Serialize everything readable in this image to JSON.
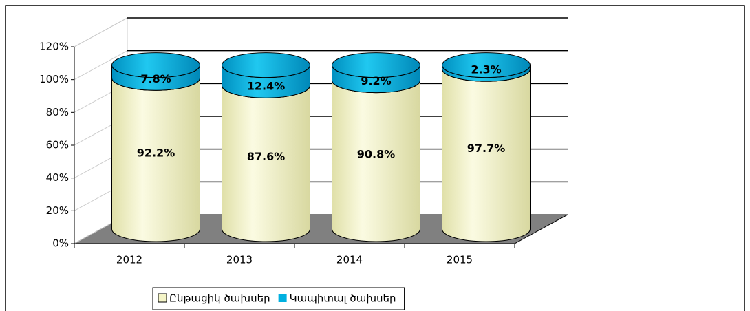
{
  "chart_data": {
    "type": "bar",
    "stacked": true,
    "categories": [
      "2012",
      "2013",
      "2014",
      "2015"
    ],
    "series": [
      {
        "name": "Ընթացիկ ծախսեր",
        "color": "#f5f5c8",
        "values": [
          92.2,
          87.6,
          90.8,
          97.7
        ],
        "value_labels": [
          "92.2%",
          "87.6%",
          "90.8%",
          "97.7%"
        ]
      },
      {
        "name": "Կապիտալ ծախսեր",
        "color": "#00b0e0",
        "values": [
          7.8,
          12.4,
          9.2,
          2.3
        ],
        "value_labels": [
          "7.8%",
          "12.4%",
          "9.2%",
          "2.3%"
        ]
      }
    ],
    "ylim": [
      0,
      120
    ],
    "yticks": [
      {
        "value": 0,
        "label": "0%"
      },
      {
        "value": 20,
        "label": "20%"
      },
      {
        "value": 40,
        "label": "40%"
      },
      {
        "value": 60,
        "label": "60%"
      },
      {
        "value": 80,
        "label": "80%"
      },
      {
        "value": 100,
        "label": "100%"
      },
      {
        "value": 120,
        "label": "120%"
      }
    ],
    "grid": true,
    "legend": "bottom"
  }
}
